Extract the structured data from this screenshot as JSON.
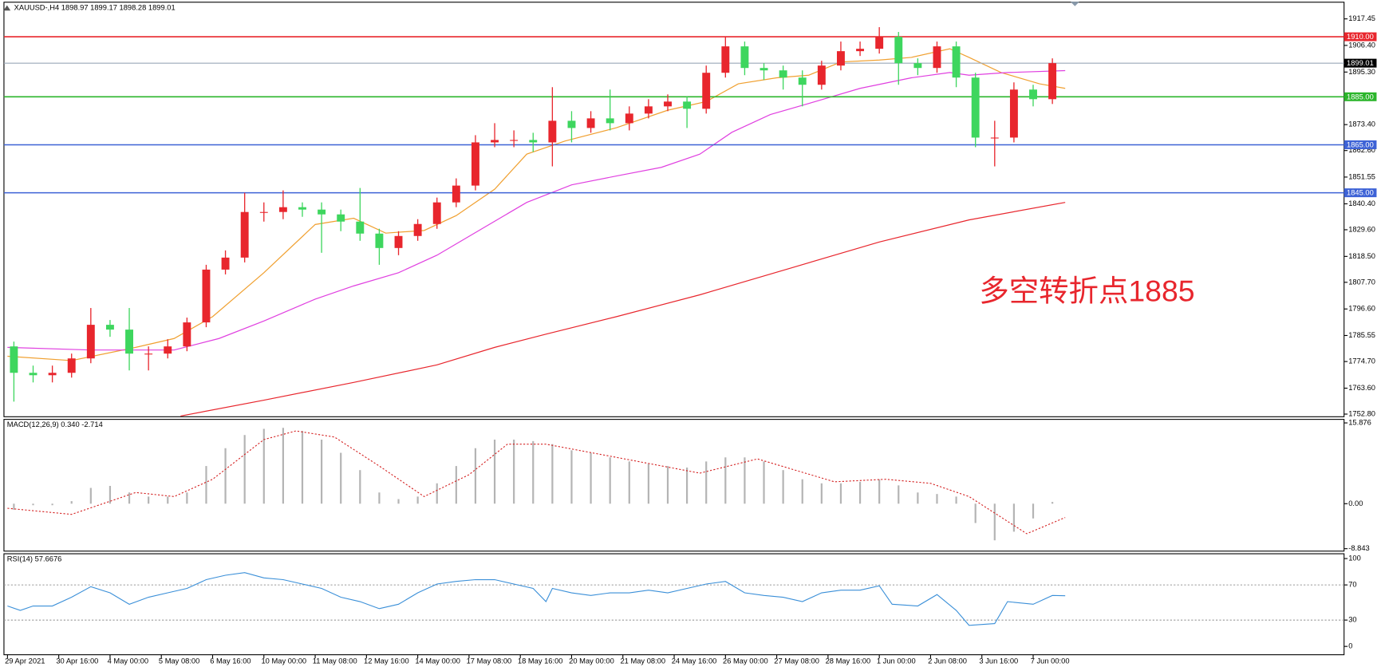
{
  "chart_data": [
    {
      "type": "candlestick",
      "title": "XAUUSD-,H4  1898.97 1899.17 1898.28 1899.01",
      "annotation": "多空转折点1885",
      "xlim": [
        -0.55,
        208.5
      ],
      "ylim": [
        1751.7,
        1924.4
      ],
      "yticks": [
        1917.45,
        {
          "value": 1906.4,
          "label": "1906.40"
        },
        {
          "value": 1895.3,
          "label": "1895.30"
        },
        {
          "value": 1873.4,
          "label": "1873.40"
        },
        {
          "value": 1862.6,
          "label": "1862.60"
        },
        1851.55,
        {
          "value": 1840.4,
          "label": "1840.40"
        },
        {
          "value": 1829.6,
          "label": "1829.60"
        },
        {
          "value": 1818.5,
          "label": "1818.50"
        },
        {
          "value": 1807.7,
          "label": "1807.70"
        },
        {
          "value": 1796.6,
          "label": "1796.60"
        },
        1785.55,
        {
          "value": 1774.7,
          "label": "1774.70"
        },
        {
          "value": 1763.6,
          "label": "1763.60"
        },
        {
          "value": 1752.8,
          "label": "1752.80"
        }
      ],
      "up_color": "#e8262d",
      "down_color": "#3ed65e",
      "candles": {
        "x": [
          1,
          4,
          7,
          10,
          13,
          16,
          19,
          22,
          25,
          28,
          31,
          34,
          37,
          40,
          43,
          46,
          49,
          52,
          55,
          58,
          61,
          64,
          67,
          70,
          73,
          76,
          79,
          82,
          85,
          88,
          91,
          94,
          97,
          100,
          103,
          106,
          109,
          112,
          115,
          118,
          121,
          124,
          127,
          130,
          133,
          136,
          139,
          142,
          145,
          148,
          151,
          154,
          157,
          160,
          163
        ],
        "open": [
          1781,
          1770,
          1769,
          1770,
          1776,
          1790,
          1788,
          1778,
          1778,
          1781,
          1791,
          1813,
          1818,
          1837,
          1837,
          1839,
          1838,
          1836,
          1833,
          1828,
          1822,
          1827,
          1832,
          1841,
          1848,
          1866,
          1867,
          1867,
          1866,
          1875,
          1872,
          1876,
          1874,
          1878,
          1881,
          1883,
          1880,
          1895,
          1906,
          1897,
          1896,
          1893,
          1890,
          1898,
          1904,
          1905,
          1910,
          1899,
          1897,
          1906,
          1893,
          1868,
          1868,
          1888,
          1884
        ],
        "high": [
          1783,
          1773,
          1773,
          1778,
          1797,
          1792,
          1797,
          1781,
          1784,
          1793,
          1815,
          1821,
          1845,
          1841,
          1846,
          1841,
          1841,
          1838,
          1847,
          1830,
          1829,
          1834,
          1843,
          1851,
          1869,
          1874,
          1871,
          1870,
          1889,
          1879,
          1879,
          1888,
          1881,
          1884,
          1886,
          1885,
          1898,
          1910,
          1908,
          1899,
          1898,
          1896,
          1900,
          1908,
          1908,
          1914,
          1912,
          1901,
          1908,
          1908,
          1895,
          1875,
          1891,
          1890,
          1901
        ],
        "low": [
          1758,
          1766,
          1766,
          1768,
          1774,
          1785,
          1771,
          1771,
          1776,
          1779,
          1789,
          1811,
          1816,
          1833,
          1834,
          1835,
          1820,
          1829,
          1825,
          1815,
          1819,
          1825,
          1830,
          1839,
          1846,
          1864,
          1864,
          1862,
          1856,
          1866,
          1870,
          1871,
          1871,
          1876,
          1879,
          1872,
          1878,
          1893,
          1894,
          1892,
          1888,
          1881,
          1888,
          1896,
          1902,
          1903,
          1890,
          1894,
          1895,
          1889,
          1864,
          1856,
          1866,
          1881,
          1882
        ],
        "close": [
          1770,
          1769,
          1770,
          1776,
          1790,
          1788,
          1778,
          1778,
          1781,
          1791,
          1813,
          1818,
          1837,
          1837,
          1839,
          1838,
          1836,
          1833,
          1828,
          1822,
          1827,
          1832,
          1841,
          1848,
          1866,
          1867,
          1867,
          1866,
          1875,
          1872,
          1876,
          1874,
          1878,
          1881,
          1883,
          1880,
          1895,
          1906,
          1897,
          1896,
          1893,
          1890,
          1898,
          1904,
          1905,
          1910,
          1899,
          1897,
          1906,
          1893,
          1868,
          1868,
          1888,
          1884,
          1899.01
        ]
      },
      "lines": [
        {
          "color": "#f0a030",
          "x": [
            0,
            10,
            20,
            26,
            32,
            40,
            48,
            54,
            59,
            65,
            70,
            76,
            81,
            87,
            95,
            103,
            109,
            114,
            120,
            125,
            130,
            136,
            141,
            147,
            150,
            155,
            161,
            165
          ],
          "values": [
            1776.9,
            1775.1,
            1780.6,
            1784.3,
            1793.4,
            1811.7,
            1831.8,
            1834.4,
            1828.2,
            1829.3,
            1835.5,
            1846.5,
            1861.1,
            1866.6,
            1872.1,
            1879.4,
            1883.0,
            1890.4,
            1892.9,
            1894.0,
            1899.5,
            1900.3,
            1901.4,
            1905.0,
            1901.4,
            1895.1,
            1890.4,
            1888.5
          ]
        },
        {
          "color": "#e040e0",
          "x": [
            0,
            13,
            26,
            33,
            40,
            48,
            54,
            61,
            67,
            74,
            81,
            88,
            95,
            102,
            108,
            113,
            119,
            126,
            133,
            141,
            147,
            150,
            156,
            165
          ],
          "values": [
            1780.6,
            1779.5,
            1779.5,
            1784.3,
            1791.6,
            1800.7,
            1806.2,
            1811.7,
            1819.0,
            1830.0,
            1841.0,
            1848.3,
            1852.0,
            1855.6,
            1861.1,
            1870.2,
            1877.6,
            1883.0,
            1888.5,
            1892.9,
            1895.1,
            1894.0,
            1895.1,
            1895.9
          ]
        },
        {
          "color": "#e8262d",
          "x": [
            27,
            40,
            54,
            67,
            76,
            84,
            95,
            108,
            122,
            136,
            150,
            165
          ],
          "values": [
            1752.0,
            1758.6,
            1766.0,
            1773.3,
            1780.6,
            1786.1,
            1793.4,
            1802.5,
            1813.5,
            1824.5,
            1833.7,
            1841.0
          ]
        }
      ],
      "levels": [
        {
          "value": 1910,
          "label": "1910.00",
          "color": "#e8262d"
        },
        {
          "value": 1885,
          "label": "1885.00",
          "color": "#2bb52b"
        },
        {
          "value": 1865,
          "label": "1865.00",
          "color": "#3d62d6"
        },
        {
          "value": 1845,
          "label": "1845.00",
          "color": "#3d62d6"
        }
      ],
      "current": 1899.01,
      "current_color": "#9aa8b8"
    },
    {
      "type": "macd",
      "title": "MACD(12,26,9) 0.340 -2.714",
      "xlim": [
        -0.55,
        208.5
      ],
      "ylim": [
        -9.32,
        16.57
      ],
      "yticks": [
        15.876,
        {
          "value": 0,
          "label": "0.00"
        },
        -8.843
      ],
      "hist_color": "#b4b4b4",
      "histogram": [
        -1.2,
        -0.3,
        -0.3,
        0.5,
        3.1,
        3.5,
        2.2,
        1.4,
        1.4,
        2.2,
        7.4,
        10.9,
        13.5,
        14.7,
        14.9,
        14.3,
        12.6,
        10.0,
        6.6,
        2.2,
        0.9,
        1.4,
        4.0,
        7.4,
        10.9,
        12.6,
        12.6,
        12.3,
        11.7,
        10.5,
        10.0,
        9.1,
        8.3,
        7.8,
        7.4,
        7.1,
        8.3,
        9.1,
        9.1,
        8.3,
        6.6,
        4.8,
        4.0,
        4.0,
        4.3,
        4.8,
        3.6,
        2.2,
        1.9,
        1.4,
        -3.8,
        -7.2,
        -5.5,
        -2.9,
        0.34
      ],
      "signal": {
        "color": "#d42020",
        "x": [
          0,
          10,
          20,
          26,
          32,
          40,
          45,
          51,
          58,
          65,
          72,
          78,
          84,
          95,
          108,
          117,
          129,
          137,
          144,
          150,
          159,
          165
        ],
        "values": [
          -0.9,
          -2.1,
          2.2,
          1.4,
          4.8,
          12.6,
          14.3,
          13.1,
          7.4,
          1.4,
          5.7,
          11.7,
          11.7,
          9.1,
          6.0,
          8.8,
          4.3,
          4.8,
          4.0,
          1.4,
          -5.9,
          -2.714
        ]
      }
    },
    {
      "type": "line",
      "title": "RSI(14) 57.6676",
      "xlim": [
        -0.55,
        208.5
      ],
      "ylim": [
        0,
        100
      ],
      "yticks": [
        100,
        70,
        30,
        0
      ],
      "dotted_grid": true,
      "color": "#3a8fd8",
      "x": [
        0,
        2,
        4,
        7,
        10,
        13,
        16,
        19,
        22,
        25,
        28,
        31,
        34,
        37,
        40,
        43,
        46,
        49,
        52,
        55,
        58,
        61,
        64,
        67,
        70,
        73,
        76,
        79,
        82,
        84,
        85,
        88,
        91,
        94,
        97,
        100,
        103,
        106,
        109,
        112,
        115,
        118,
        121,
        124,
        127,
        130,
        133,
        136,
        138,
        142,
        145,
        148,
        150,
        154,
        156,
        160,
        163,
        165
      ],
      "values": [
        46,
        41,
        46,
        46,
        56,
        68,
        61,
        48,
        56,
        61,
        66,
        76,
        81,
        84,
        78,
        76,
        71,
        66,
        56,
        51,
        43,
        48,
        61,
        71,
        74,
        76,
        76,
        71,
        66,
        51,
        66,
        61,
        58,
        61,
        61,
        64,
        61,
        66,
        71,
        74,
        61,
        58,
        56,
        51,
        61,
        64,
        64,
        69,
        48,
        46,
        59,
        41,
        24,
        26,
        51,
        48,
        58,
        57.6676
      ],
      "xticks": [
        {
          "value": 0,
          "label": "29 Apr 2021"
        },
        {
          "value": 8,
          "label": "30 Apr 16:00"
        },
        {
          "value": 16,
          "label": "4 May 00:00"
        },
        {
          "value": 24,
          "label": "5 May 08:00"
        },
        {
          "value": 32,
          "label": "6 May 16:00"
        },
        {
          "value": 40,
          "label": "10 May 00:00"
        },
        {
          "value": 48,
          "label": "11 May 08:00"
        },
        {
          "value": 56,
          "label": "12 May 16:00"
        },
        {
          "value": 64,
          "label": "14 May 00:00"
        },
        {
          "value": 72,
          "label": "17 May 08:00"
        },
        {
          "value": 80,
          "label": "18 May 16:00"
        },
        {
          "value": 88,
          "label": "20 May 00:00"
        },
        {
          "value": 96,
          "label": "21 May 08:00"
        },
        {
          "value": 104,
          "label": "24 May 16:00"
        },
        {
          "value": 112,
          "label": "26 May 00:00"
        },
        {
          "value": 120,
          "label": "27 May 08:00"
        },
        {
          "value": 128,
          "label": "28 May 16:00"
        },
        {
          "value": 136,
          "label": "1 Jun 00:00"
        },
        {
          "value": 144,
          "label": "2 Jun 08:00"
        },
        {
          "value": 152,
          "label": "3 Jun 16:00"
        },
        {
          "value": 160,
          "label": "7 Jun 00:00"
        }
      ]
    }
  ]
}
